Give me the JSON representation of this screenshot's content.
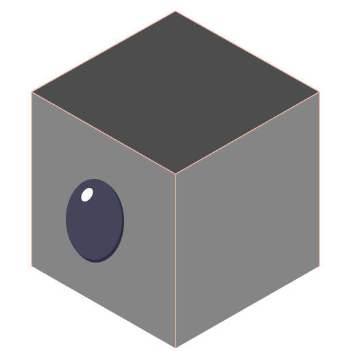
{
  "scene": {
    "object": "isometric-cube",
    "colors": {
      "background": "#ffffff",
      "top_face": "#4d4d4d",
      "left_face": "#858585",
      "right_face": "#858585",
      "edge_outline": "#f2b8a8",
      "eye_main": "#44445a",
      "eye_shadow": "#2e2e40",
      "eye_highlight": "#ffffff"
    },
    "features": [
      {
        "name": "eye",
        "face": "left",
        "icon": "eye-icon"
      }
    ]
  }
}
